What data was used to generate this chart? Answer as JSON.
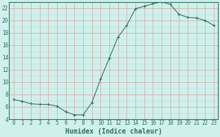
{
  "x": [
    0,
    1,
    2,
    3,
    4,
    5,
    6,
    7,
    8,
    9,
    10,
    11,
    12,
    13,
    14,
    15,
    16,
    17,
    18,
    19,
    20,
    21,
    22,
    23
  ],
  "y": [
    7.2,
    6.9,
    6.5,
    6.4,
    6.4,
    6.1,
    5.2,
    4.7,
    4.7,
    6.7,
    10.5,
    13.9,
    17.3,
    19.2,
    21.9,
    22.3,
    22.7,
    23.0,
    22.6,
    21.0,
    20.5,
    20.4,
    20.0,
    19.2
  ],
  "line_color": "#2d6e62",
  "marker": "+",
  "marker_color": "#2d6e62",
  "bg_color": "#cff0eb",
  "major_grid_color": "#d4a0a0",
  "minor_grid_color": "#b8e0db",
  "xlabel": "Humidex (Indice chaleur)",
  "ylim": [
    4,
    23
  ],
  "xlim": [
    -0.5,
    23.5
  ],
  "yticks_major": [
    4,
    6,
    8,
    10,
    12,
    14,
    16,
    18,
    20,
    22
  ],
  "xticks": [
    0,
    1,
    2,
    3,
    4,
    5,
    6,
    7,
    8,
    9,
    10,
    11,
    12,
    13,
    14,
    15,
    16,
    17,
    18,
    19,
    20,
    21,
    22,
    23
  ],
  "font_color": "#2d6e62",
  "font_size": 5.5,
  "label_font_size": 7
}
